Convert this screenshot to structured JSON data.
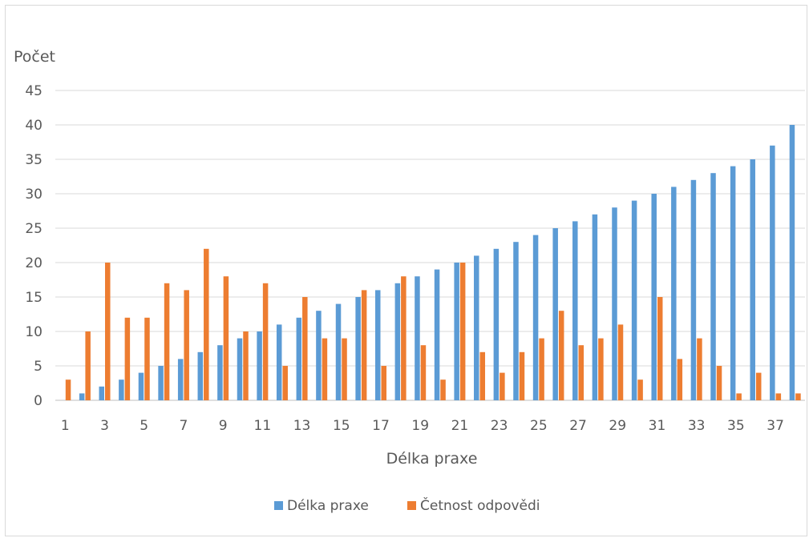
{
  "chart_data": {
    "type": "bar",
    "title": "",
    "xlabel": "Délka praxe",
    "ylabel": "Počet",
    "ylim": [
      0,
      45
    ],
    "yticks": [
      "0",
      "5",
      "10",
      "15",
      "20",
      "25",
      "30",
      "35",
      "40",
      "45"
    ],
    "categories": [
      1,
      2,
      3,
      4,
      5,
      6,
      7,
      8,
      9,
      10,
      11,
      12,
      13,
      14,
      15,
      16,
      17,
      18,
      19,
      20,
      21,
      22,
      23,
      24,
      25,
      26,
      27,
      28,
      29,
      30,
      31,
      32,
      33,
      34,
      35,
      36,
      37,
      38
    ],
    "x_tick_labels": [
      "1",
      "3",
      "5",
      "7",
      "9",
      "11",
      "13",
      "15",
      "17",
      "19",
      "21",
      "23",
      "25",
      "27",
      "29",
      "31",
      "33",
      "35",
      "37"
    ],
    "series": [
      {
        "name": "Délka praxe",
        "color": "#5b9bd5",
        "values": [
          0,
          1,
          2,
          3,
          4,
          5,
          6,
          7,
          8,
          9,
          10,
          11,
          12,
          13,
          14,
          15,
          16,
          17,
          18,
          19,
          20,
          21,
          22,
          23,
          24,
          25,
          26,
          27,
          28,
          29,
          30,
          31,
          32,
          33,
          34,
          35,
          37,
          40
        ]
      },
      {
        "name": "Četnost odpovědi",
        "color": "#ed7d31",
        "values": [
          3,
          10,
          20,
          12,
          12,
          17,
          16,
          22,
          18,
          10,
          17,
          5,
          15,
          9,
          9,
          16,
          5,
          18,
          8,
          3,
          20,
          7,
          4,
          7,
          9,
          13,
          8,
          9,
          11,
          3,
          15,
          6,
          9,
          5,
          1,
          4,
          1,
          1
        ]
      }
    ],
    "grid": true,
    "legend_position": "bottom"
  }
}
